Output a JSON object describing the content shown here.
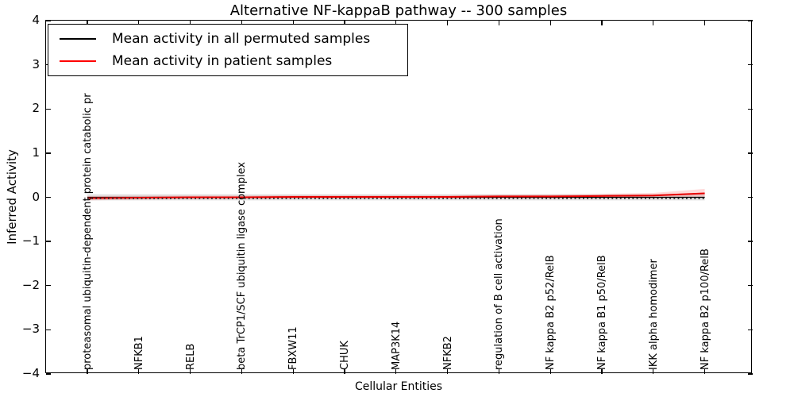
{
  "figure": {
    "title": "Alternative NF-kappaB pathway -- 300 samples",
    "xlabel": "Cellular Entities",
    "ylabel": "Inferred Activity"
  },
  "legend": {
    "items": [
      {
        "label": "Mean activity in all permuted samples",
        "color": "#000000"
      },
      {
        "label": "Mean activity in patient samples",
        "color": "#ff0000"
      }
    ]
  },
  "colors": {
    "permuted_line": "#000000",
    "patient_line": "#e80000",
    "permuted_band": "#e2e2e2",
    "patient_band": "rgba(255,0,0,0.14)",
    "zero_dotted": "#111111"
  },
  "chart_data": {
    "type": "line",
    "title": "Alternative NF-kappaB pathway -- 300 samples",
    "xlabel": "Cellular Entities",
    "ylabel": "Inferred Activity",
    "ylim": [
      -4,
      4
    ],
    "yticks": [
      4,
      3,
      2,
      1,
      0,
      -1,
      -2,
      -3,
      -4
    ],
    "grid": false,
    "legend_position": "upper left",
    "zero_reference_line": {
      "style": "dotted",
      "y": 0
    },
    "categories": [
      "proteasomal ubiquitin-dependent protein catabolic pr",
      "NFKB1",
      "RELB",
      "beta TrCP1/SCF ubiquitin ligase complex",
      "FBXW11",
      "CHUK",
      "MAP3K14",
      "NFKB2",
      "regulation of B cell activation",
      "NF kappa B2 p52/RelB",
      "NF kappa B1 p50/RelB",
      "IKK alpha homodimer",
      "NF kappa B2 p100/RelB"
    ],
    "series": [
      {
        "name": "Mean activity in all permuted samples",
        "color": "#000000",
        "style": "solid",
        "values": [
          0,
          0,
          0,
          0,
          0,
          0,
          0,
          0,
          0,
          0,
          0,
          0,
          0
        ],
        "band_half_widths": [
          0.07,
          0.07,
          0.07,
          0.07,
          0.07,
          0.07,
          0.07,
          0.07,
          0.07,
          0.07,
          0.07,
          0.07,
          0.07
        ]
      },
      {
        "name": "Mean activity in patient samples",
        "color": "#e80000",
        "style": "solid",
        "values": [
          -0.02,
          -0.01,
          0,
          0,
          0.01,
          0.01,
          0.01,
          0.01,
          0.02,
          0.02,
          0.03,
          0.04,
          0.09
        ],
        "band_half_widths": [
          0.05,
          0.045,
          0.04,
          0.04,
          0.04,
          0.04,
          0.04,
          0.04,
          0.04,
          0.045,
          0.05,
          0.06,
          0.1
        ]
      }
    ]
  }
}
